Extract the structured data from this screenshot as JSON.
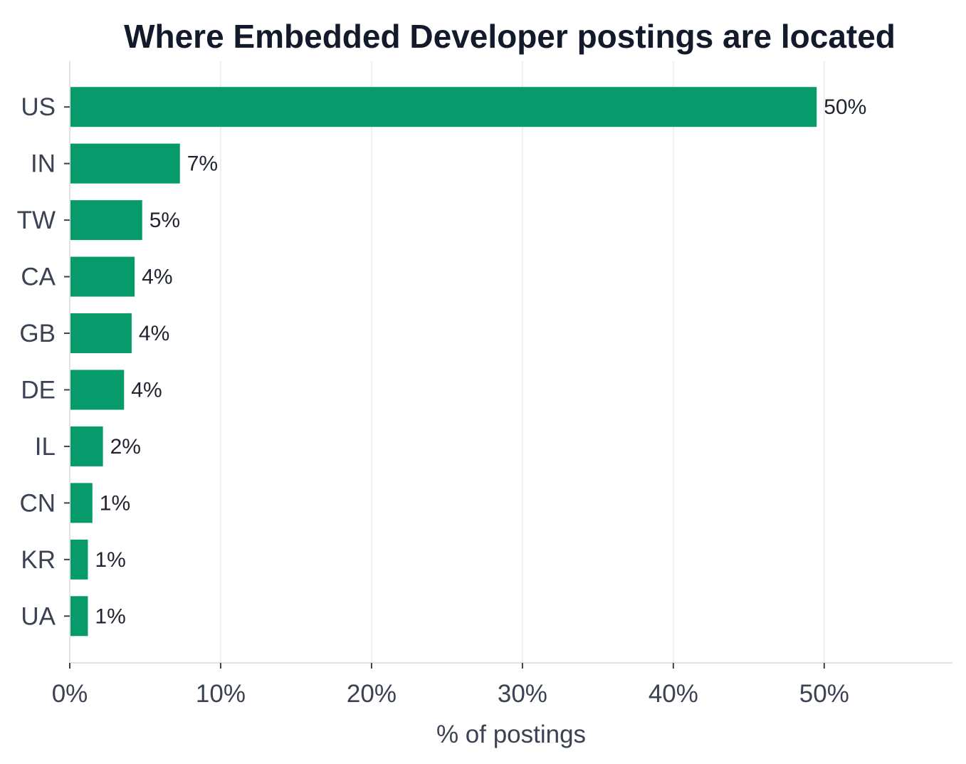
{
  "chart_data": {
    "type": "bar",
    "orientation": "horizontal",
    "title": "Where Embedded Developer postings are located",
    "xlabel": "% of postings",
    "ylabel": "",
    "categories": [
      "US",
      "IN",
      "TW",
      "CA",
      "GB",
      "DE",
      "IL",
      "CN",
      "KR",
      "UA"
    ],
    "values": [
      49.5,
      7.3,
      4.8,
      4.3,
      4.1,
      3.6,
      2.2,
      1.5,
      1.2,
      1.2
    ],
    "data_labels": [
      "50%",
      "7%",
      "5%",
      "4%",
      "4%",
      "4%",
      "2%",
      "1%",
      "1%",
      "1%"
    ],
    "xlim": [
      0,
      58.5
    ],
    "xticks": [
      0,
      10,
      20,
      30,
      40,
      50
    ],
    "xtick_labels": [
      "0%",
      "10%",
      "20%",
      "30%",
      "40%",
      "50%"
    ],
    "grid": "vertical",
    "legend": "none",
    "colors": {
      "bar": "#079a6b",
      "grid": "#efefef",
      "axis": "#e3e3e3"
    }
  }
}
